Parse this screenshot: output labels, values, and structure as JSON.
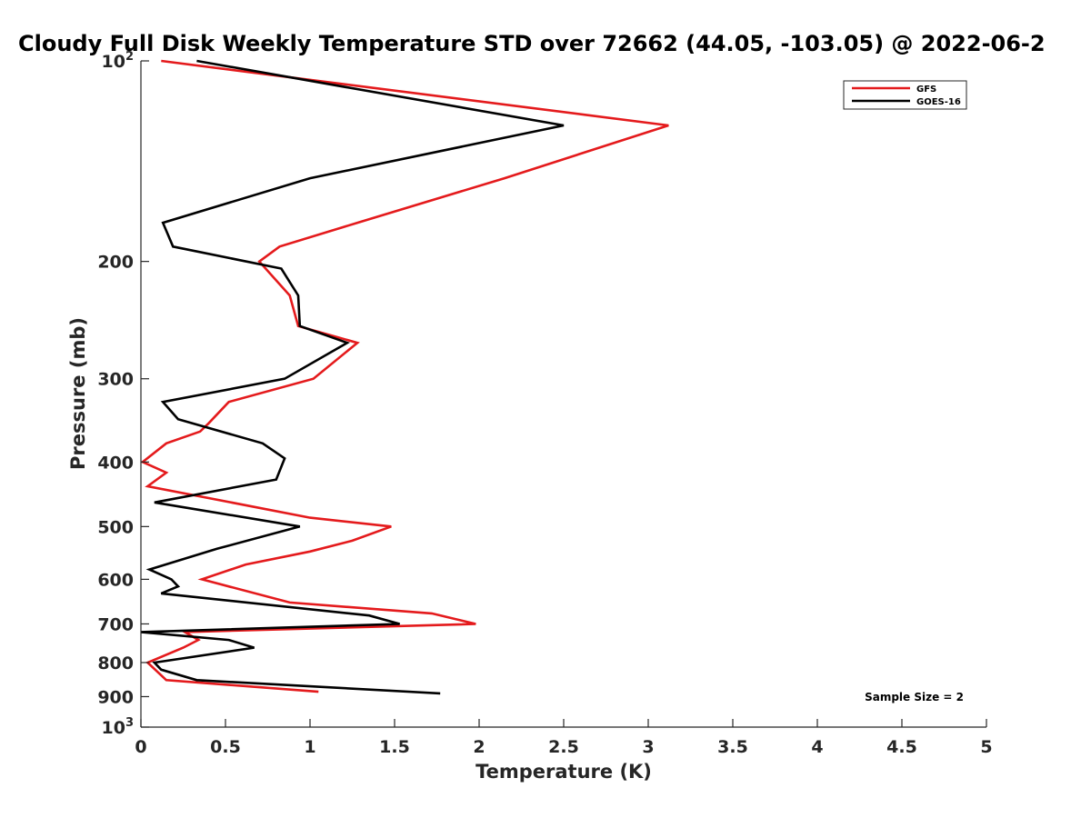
{
  "chart_data": {
    "type": "line",
    "title": "Cloudy Full Disk Weekly Temperature STD over 72662 (44.05, -103.05) @ 2022-06-2",
    "xlabel": "Temperature (K)",
    "ylabel": "Pressure (mb)",
    "xlim": [
      0,
      5
    ],
    "ylim": [
      100,
      1000
    ],
    "yscale": "log",
    "y_reversed": true,
    "x_ticks": [
      "0",
      "0.5",
      "1",
      "1.5",
      "2",
      "2.5",
      "3",
      "3.5",
      "4",
      "4.5",
      "5"
    ],
    "y_ticks": [
      {
        "value": 100,
        "base": "10",
        "exp": "2"
      },
      {
        "value": 200,
        "label": "200"
      },
      {
        "value": 300,
        "label": "300"
      },
      {
        "value": 400,
        "label": "400"
      },
      {
        "value": 500,
        "label": "500"
      },
      {
        "value": 600,
        "label": "600"
      },
      {
        "value": 700,
        "label": "700"
      },
      {
        "value": 800,
        "label": "800"
      },
      {
        "value": 900,
        "label": "900"
      },
      {
        "value": 1000,
        "base": "10",
        "exp": "3"
      }
    ],
    "grid": false,
    "legend_position": "top-right",
    "annotation": "Sample Size = 2",
    "series": [
      {
        "name": "GFS",
        "color": "#e41a1c",
        "points": [
          [
            0.12,
            100
          ],
          [
            3.12,
            125
          ],
          [
            2.15,
            150
          ],
          [
            1.28,
            175
          ],
          [
            0.82,
            190
          ],
          [
            0.7,
            200
          ],
          [
            0.88,
            225
          ],
          [
            0.93,
            250
          ],
          [
            1.28,
            265
          ],
          [
            1.02,
            300
          ],
          [
            0.52,
            325
          ],
          [
            0.4,
            350
          ],
          [
            0.35,
            360
          ],
          [
            0.15,
            375
          ],
          [
            0.01,
            400
          ],
          [
            0.15,
            415
          ],
          [
            0.04,
            435
          ],
          [
            1.0,
            485
          ],
          [
            1.48,
            500
          ],
          [
            1.25,
            525
          ],
          [
            1.0,
            545
          ],
          [
            0.62,
            570
          ],
          [
            0.36,
            600
          ],
          [
            0.88,
            650
          ],
          [
            1.72,
            675
          ],
          [
            1.98,
            700
          ],
          [
            0.26,
            720
          ],
          [
            0.34,
            740
          ],
          [
            0.25,
            760
          ],
          [
            0.04,
            800
          ],
          [
            0.15,
            850
          ],
          [
            1.05,
            885
          ]
        ]
      },
      {
        "name": "GOES-16",
        "color": "#000000",
        "points": [
          [
            0.33,
            100
          ],
          [
            2.5,
            125
          ],
          [
            1.0,
            150
          ],
          [
            0.13,
            175
          ],
          [
            0.19,
            190
          ],
          [
            0.83,
            205
          ],
          [
            0.93,
            225
          ],
          [
            0.94,
            250
          ],
          [
            1.22,
            265
          ],
          [
            0.85,
            300
          ],
          [
            0.13,
            325
          ],
          [
            0.22,
            345
          ],
          [
            0.72,
            375
          ],
          [
            0.85,
            395
          ],
          [
            0.8,
            425
          ],
          [
            0.08,
            460
          ],
          [
            0.94,
            500
          ],
          [
            0.45,
            540
          ],
          [
            0.05,
            580
          ],
          [
            0.18,
            600
          ],
          [
            0.22,
            615
          ],
          [
            0.12,
            630
          ],
          [
            1.35,
            680
          ],
          [
            1.53,
            700
          ],
          [
            0.0,
            720
          ],
          [
            0.52,
            740
          ],
          [
            0.67,
            760
          ],
          [
            0.08,
            800
          ],
          [
            0.12,
            820
          ],
          [
            0.33,
            850
          ],
          [
            1.77,
            890
          ]
        ]
      }
    ]
  }
}
